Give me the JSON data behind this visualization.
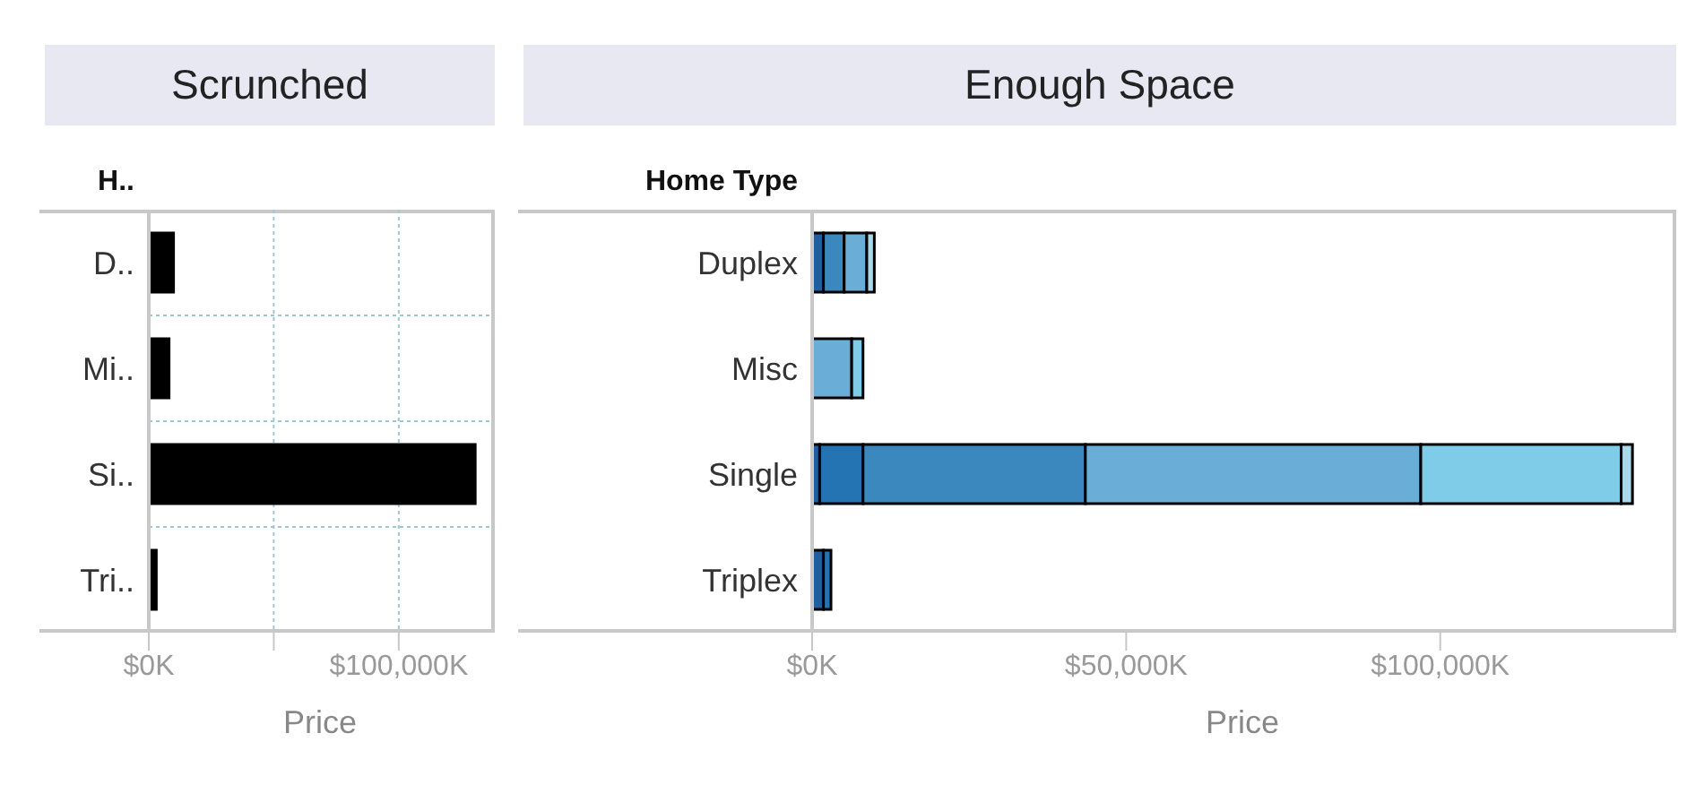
{
  "chart_data": [
    {
      "type": "bar",
      "title": "Scrunched",
      "ylabel": "H..",
      "xlabel": "Price",
      "orientation": "horizontal",
      "stacked": true,
      "grid": true,
      "categories": [
        "D..",
        "Mi..",
        "Si..",
        "Tri.."
      ],
      "series": [
        {
          "color": "#000000",
          "values": [
            9900,
            8100,
            130600,
            3000
          ]
        }
      ],
      "xlim": [
        0,
        137000
      ],
      "xticks": [
        {
          "value": 0,
          "label": "$0K"
        },
        {
          "value": 50000,
          "label": null
        },
        {
          "value": 100000,
          "label": "$100,000K"
        }
      ]
    },
    {
      "type": "bar",
      "title": "Enough Space",
      "ylabel": "Home Type",
      "xlabel": "Price",
      "orientation": "horizontal",
      "stacked": true,
      "grid": false,
      "categories": [
        "Duplex",
        "Misc",
        "Single",
        "Triplex"
      ],
      "series": [
        {
          "color": "#1f5f9e",
          "values": [
            1800,
            null,
            1200,
            1800
          ]
        },
        {
          "color": "#2473b3",
          "values": [
            null,
            null,
            6900,
            1200
          ]
        },
        {
          "color": "#3b88bf",
          "values": [
            3300,
            null,
            35400,
            null
          ]
        },
        {
          "color": "#6aaed8",
          "values": [
            3600,
            6300,
            53400,
            null
          ]
        },
        {
          "color": "#7fcce8",
          "values": [
            null,
            1800,
            31900,
            null
          ]
        },
        {
          "color": "#a8d8ea",
          "values": [
            1200,
            null,
            1800,
            null
          ]
        }
      ],
      "xlim": [
        0,
        137000
      ],
      "xticks": [
        {
          "value": 0,
          "label": "$0K"
        },
        {
          "value": 50000,
          "label": "$50,000K"
        },
        {
          "value": 100000,
          "label": "$100,000K"
        }
      ]
    }
  ]
}
